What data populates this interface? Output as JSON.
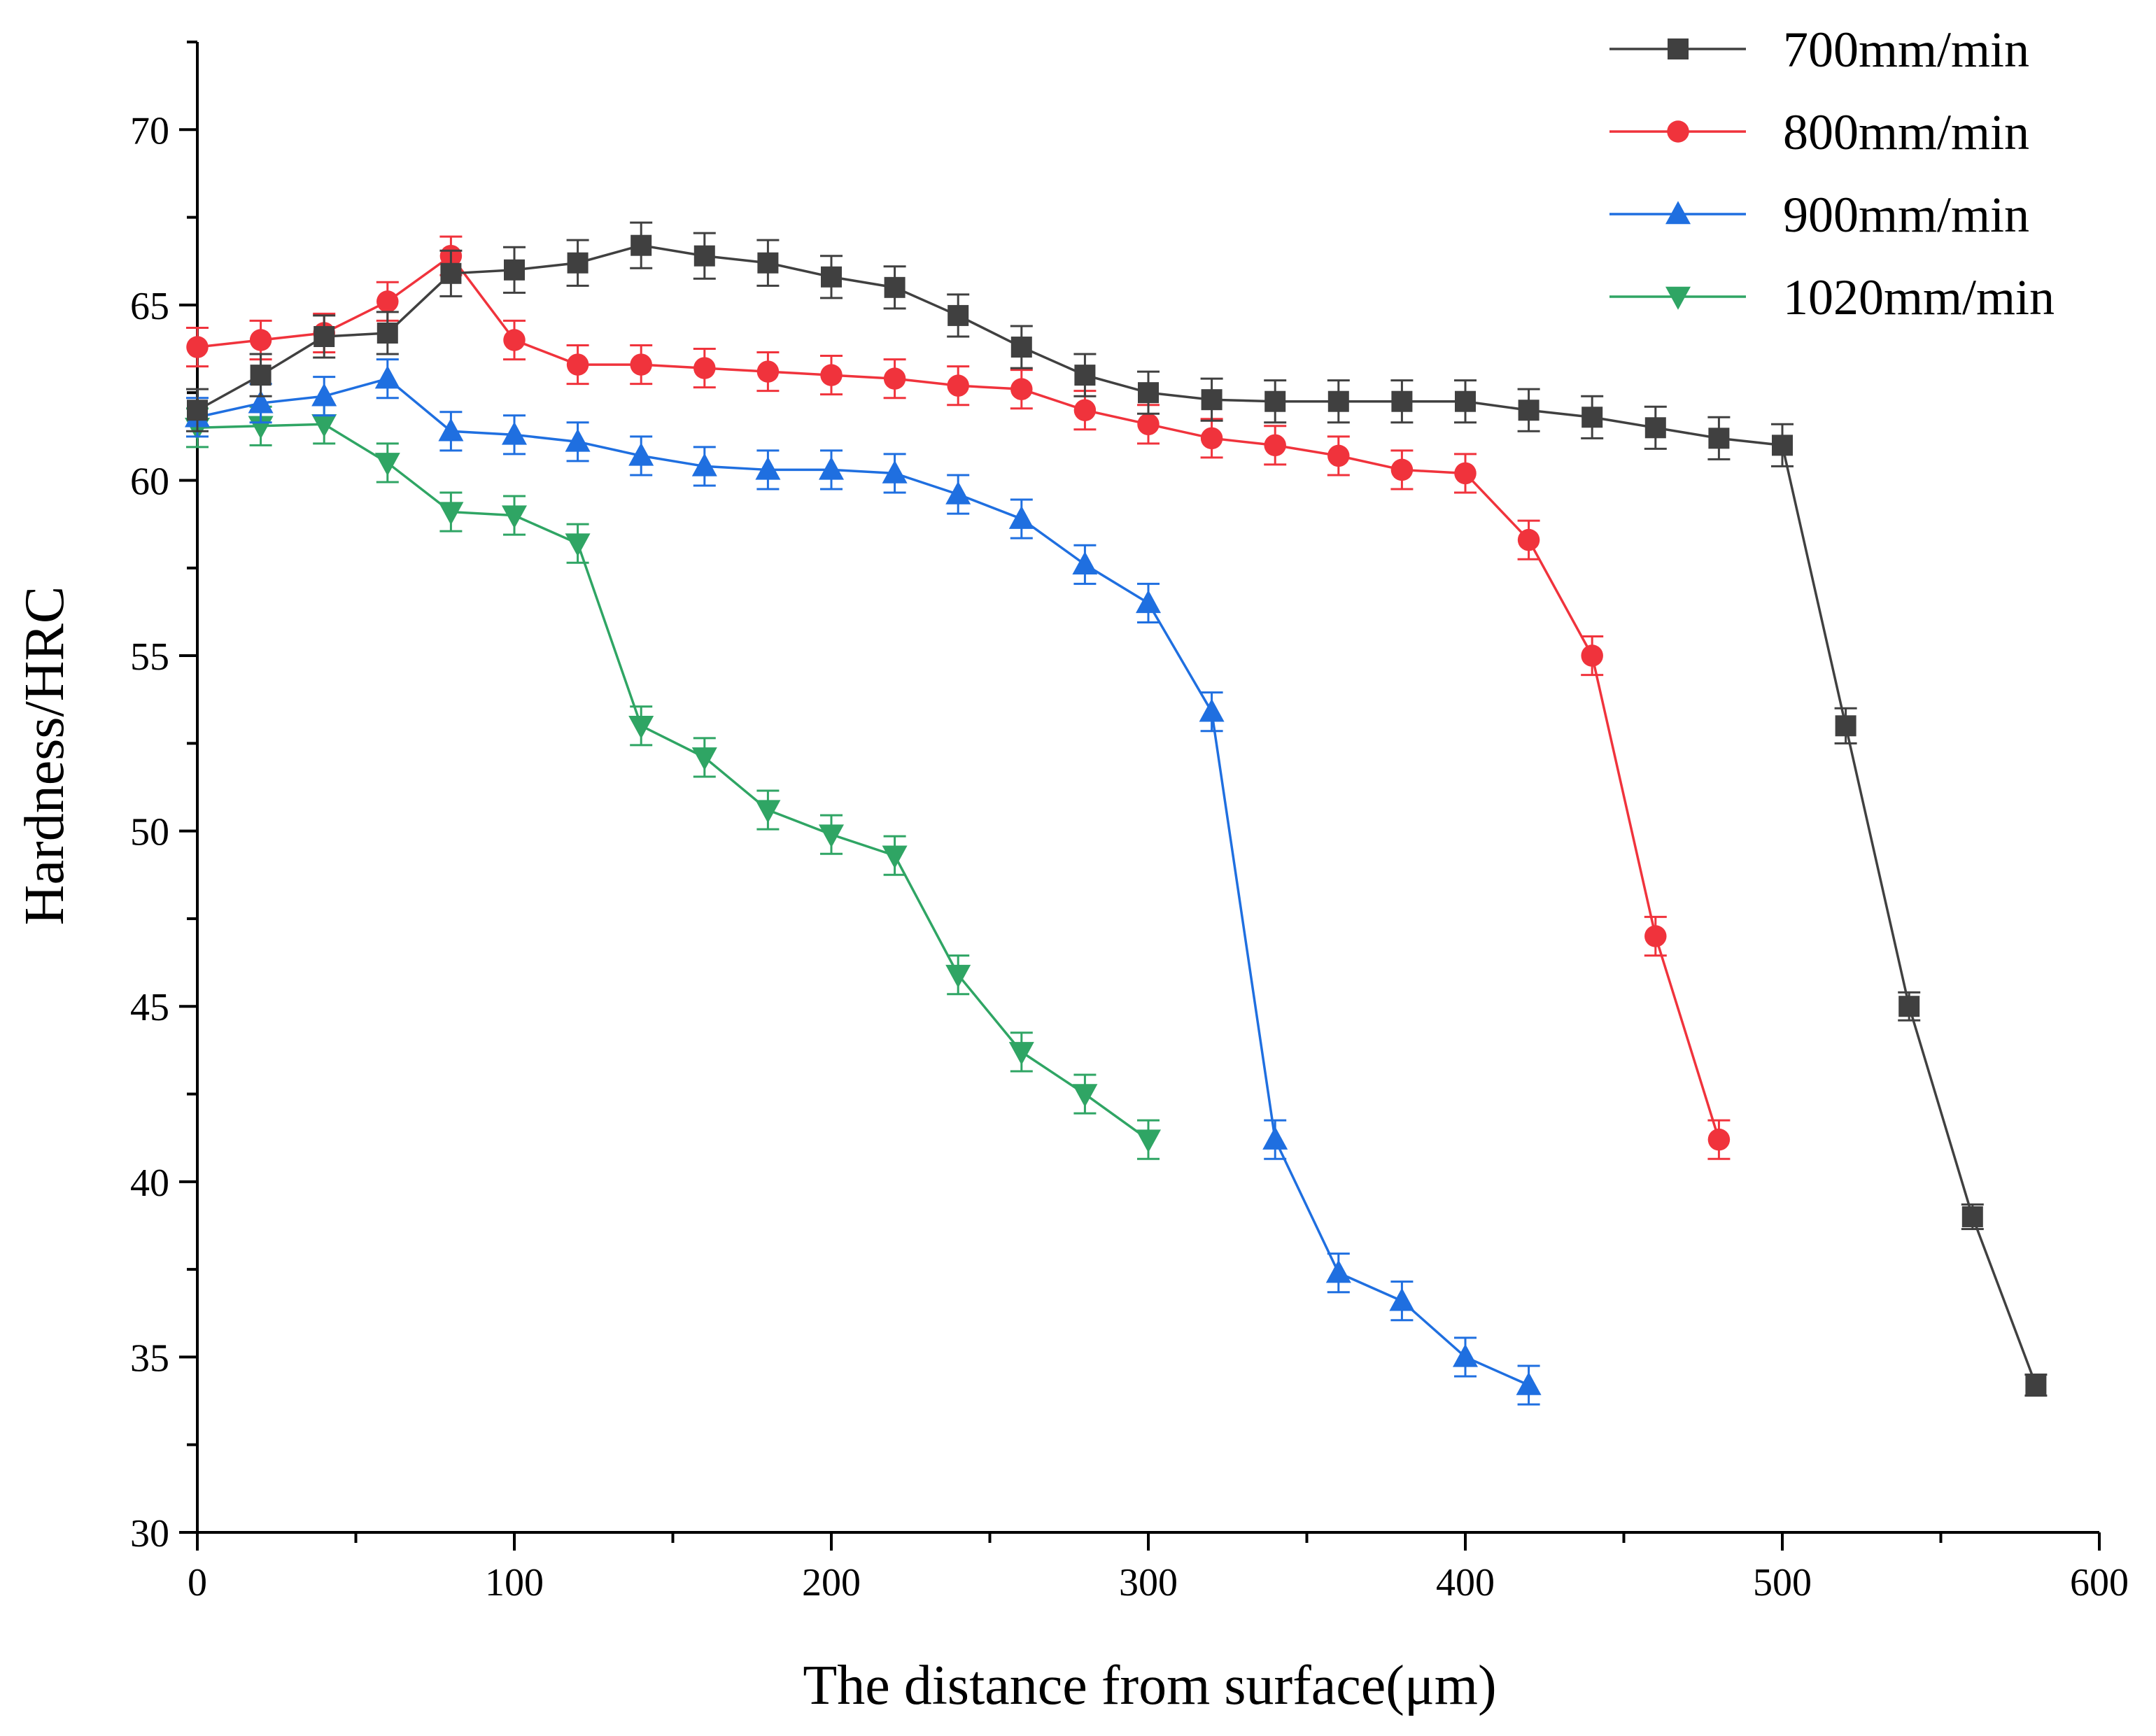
{
  "chart_data": {
    "type": "line",
    "title": "",
    "xlabel": "The distance from surface(μm)",
    "ylabel": "Hardness/HRC",
    "xlim": [
      0,
      600
    ],
    "ylim": [
      30,
      72.5
    ],
    "xticks": [
      0,
      100,
      200,
      300,
      400,
      500,
      600
    ],
    "yticks": [
      30,
      35,
      40,
      45,
      50,
      55,
      60,
      65,
      70
    ],
    "grid": false,
    "legend_position": "top-right",
    "series": [
      {
        "name": "700mm/min",
        "color": "#404040",
        "marker": "square",
        "x": [
          0,
          20,
          40,
          60,
          80,
          100,
          120,
          140,
          160,
          180,
          200,
          220,
          240,
          260,
          280,
          300,
          320,
          340,
          360,
          380,
          400,
          420,
          440,
          460,
          480,
          500,
          520,
          540,
          560,
          580
        ],
        "y": [
          62.0,
          63.0,
          64.1,
          64.2,
          65.9,
          66.0,
          66.2,
          66.7,
          66.4,
          66.2,
          65.8,
          65.5,
          64.7,
          63.8,
          63.0,
          62.5,
          62.3,
          62.25,
          62.25,
          62.25,
          62.25,
          62.0,
          61.8,
          61.5,
          61.2,
          61.0,
          53.0,
          45.0,
          39.0,
          34.2
        ],
        "err": [
          0.6,
          0.6,
          0.6,
          0.6,
          0.65,
          0.65,
          0.65,
          0.65,
          0.65,
          0.65,
          0.6,
          0.6,
          0.6,
          0.6,
          0.6,
          0.6,
          0.6,
          0.6,
          0.6,
          0.6,
          0.6,
          0.6,
          0.6,
          0.6,
          0.6,
          0.6,
          0.5,
          0.4,
          0.35,
          0.3
        ]
      },
      {
        "name": "800mm/min",
        "color": "#f0333c",
        "marker": "circle",
        "x": [
          0,
          20,
          40,
          60,
          80,
          100,
          120,
          140,
          160,
          180,
          200,
          220,
          240,
          260,
          280,
          300,
          320,
          340,
          360,
          380,
          400,
          420,
          440,
          460,
          480
        ],
        "y": [
          63.8,
          64.0,
          64.2,
          65.1,
          66.4,
          64.0,
          63.3,
          63.3,
          63.2,
          63.1,
          63.0,
          62.9,
          62.7,
          62.6,
          62.0,
          61.6,
          61.2,
          61.0,
          60.7,
          60.3,
          60.2,
          58.3,
          55.0,
          47.0,
          41.2
        ]
      },
      {
        "name": "900mm/min",
        "color": "#1f6fe0",
        "marker": "triangle-up",
        "x": [
          0,
          20,
          40,
          60,
          80,
          100,
          120,
          140,
          160,
          180,
          200,
          220,
          240,
          260,
          280,
          300,
          320,
          340,
          360,
          380,
          400,
          420
        ],
        "y": [
          61.8,
          62.2,
          62.4,
          62.9,
          61.4,
          61.3,
          61.1,
          60.7,
          60.4,
          60.3,
          60.3,
          60.2,
          59.6,
          58.9,
          57.6,
          56.5,
          53.4,
          41.2,
          37.4,
          36.6,
          35.0,
          34.2
        ]
      },
      {
        "name": "1020mm/min",
        "color": "#2fa564",
        "marker": "triangle-down",
        "x": [
          0,
          20,
          40,
          60,
          80,
          100,
          120,
          140,
          160,
          180,
          200,
          220,
          240,
          260,
          280,
          300
        ],
        "y": [
          61.5,
          61.55,
          61.6,
          60.5,
          59.1,
          59.0,
          58.2,
          53.0,
          52.1,
          50.6,
          49.9,
          49.3,
          45.9,
          43.7,
          42.5,
          41.2
        ]
      }
    ]
  }
}
